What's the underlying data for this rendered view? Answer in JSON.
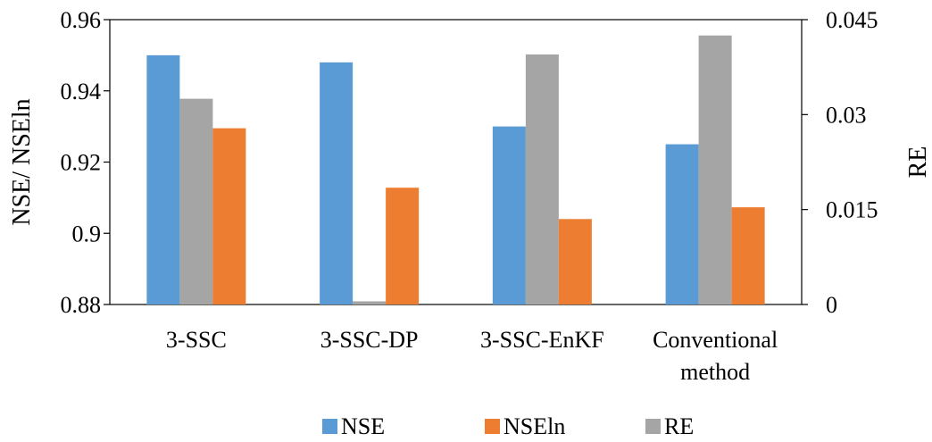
{
  "chart_data": {
    "type": "bar",
    "categories": [
      [
        "3-SSC"
      ],
      [
        "3-SSC-DP"
      ],
      [
        "3-SSC-EnKF"
      ],
      [
        "Conventional",
        "method"
      ]
    ],
    "series": [
      {
        "name": "NSE",
        "axis": "left",
        "color": "#5B9BD5",
        "values": [
          0.95,
          0.948,
          0.93,
          0.925
        ]
      },
      {
        "name": "NSEln",
        "axis": "left",
        "color": "#ED7D31",
        "values": [
          0.9295,
          0.9128,
          0.904,
          0.9073
        ]
      },
      {
        "name": "RE",
        "axis": "right",
        "color": "#A5A5A5",
        "values": [
          0.0325,
          0.0005,
          0.0395,
          0.0425
        ]
      }
    ],
    "bar_order": [
      "NSE",
      "RE",
      "NSEln"
    ],
    "left_axis": {
      "label": "NSE/ NSEln",
      "ylim": [
        0.88,
        0.96
      ],
      "ticks": [
        0.88,
        0.9,
        0.92,
        0.94,
        0.96
      ],
      "tick_labels": [
        "0.88",
        "0.9",
        "0.92",
        "0.94",
        "0.96"
      ]
    },
    "right_axis": {
      "label": "RE",
      "ylim": [
        0,
        0.045
      ],
      "ticks": [
        0,
        0.015,
        0.03,
        0.045
      ],
      "tick_labels": [
        "0",
        "0.015",
        "0.03",
        "0.045"
      ]
    },
    "grid": false,
    "legend_position": "bottom"
  }
}
